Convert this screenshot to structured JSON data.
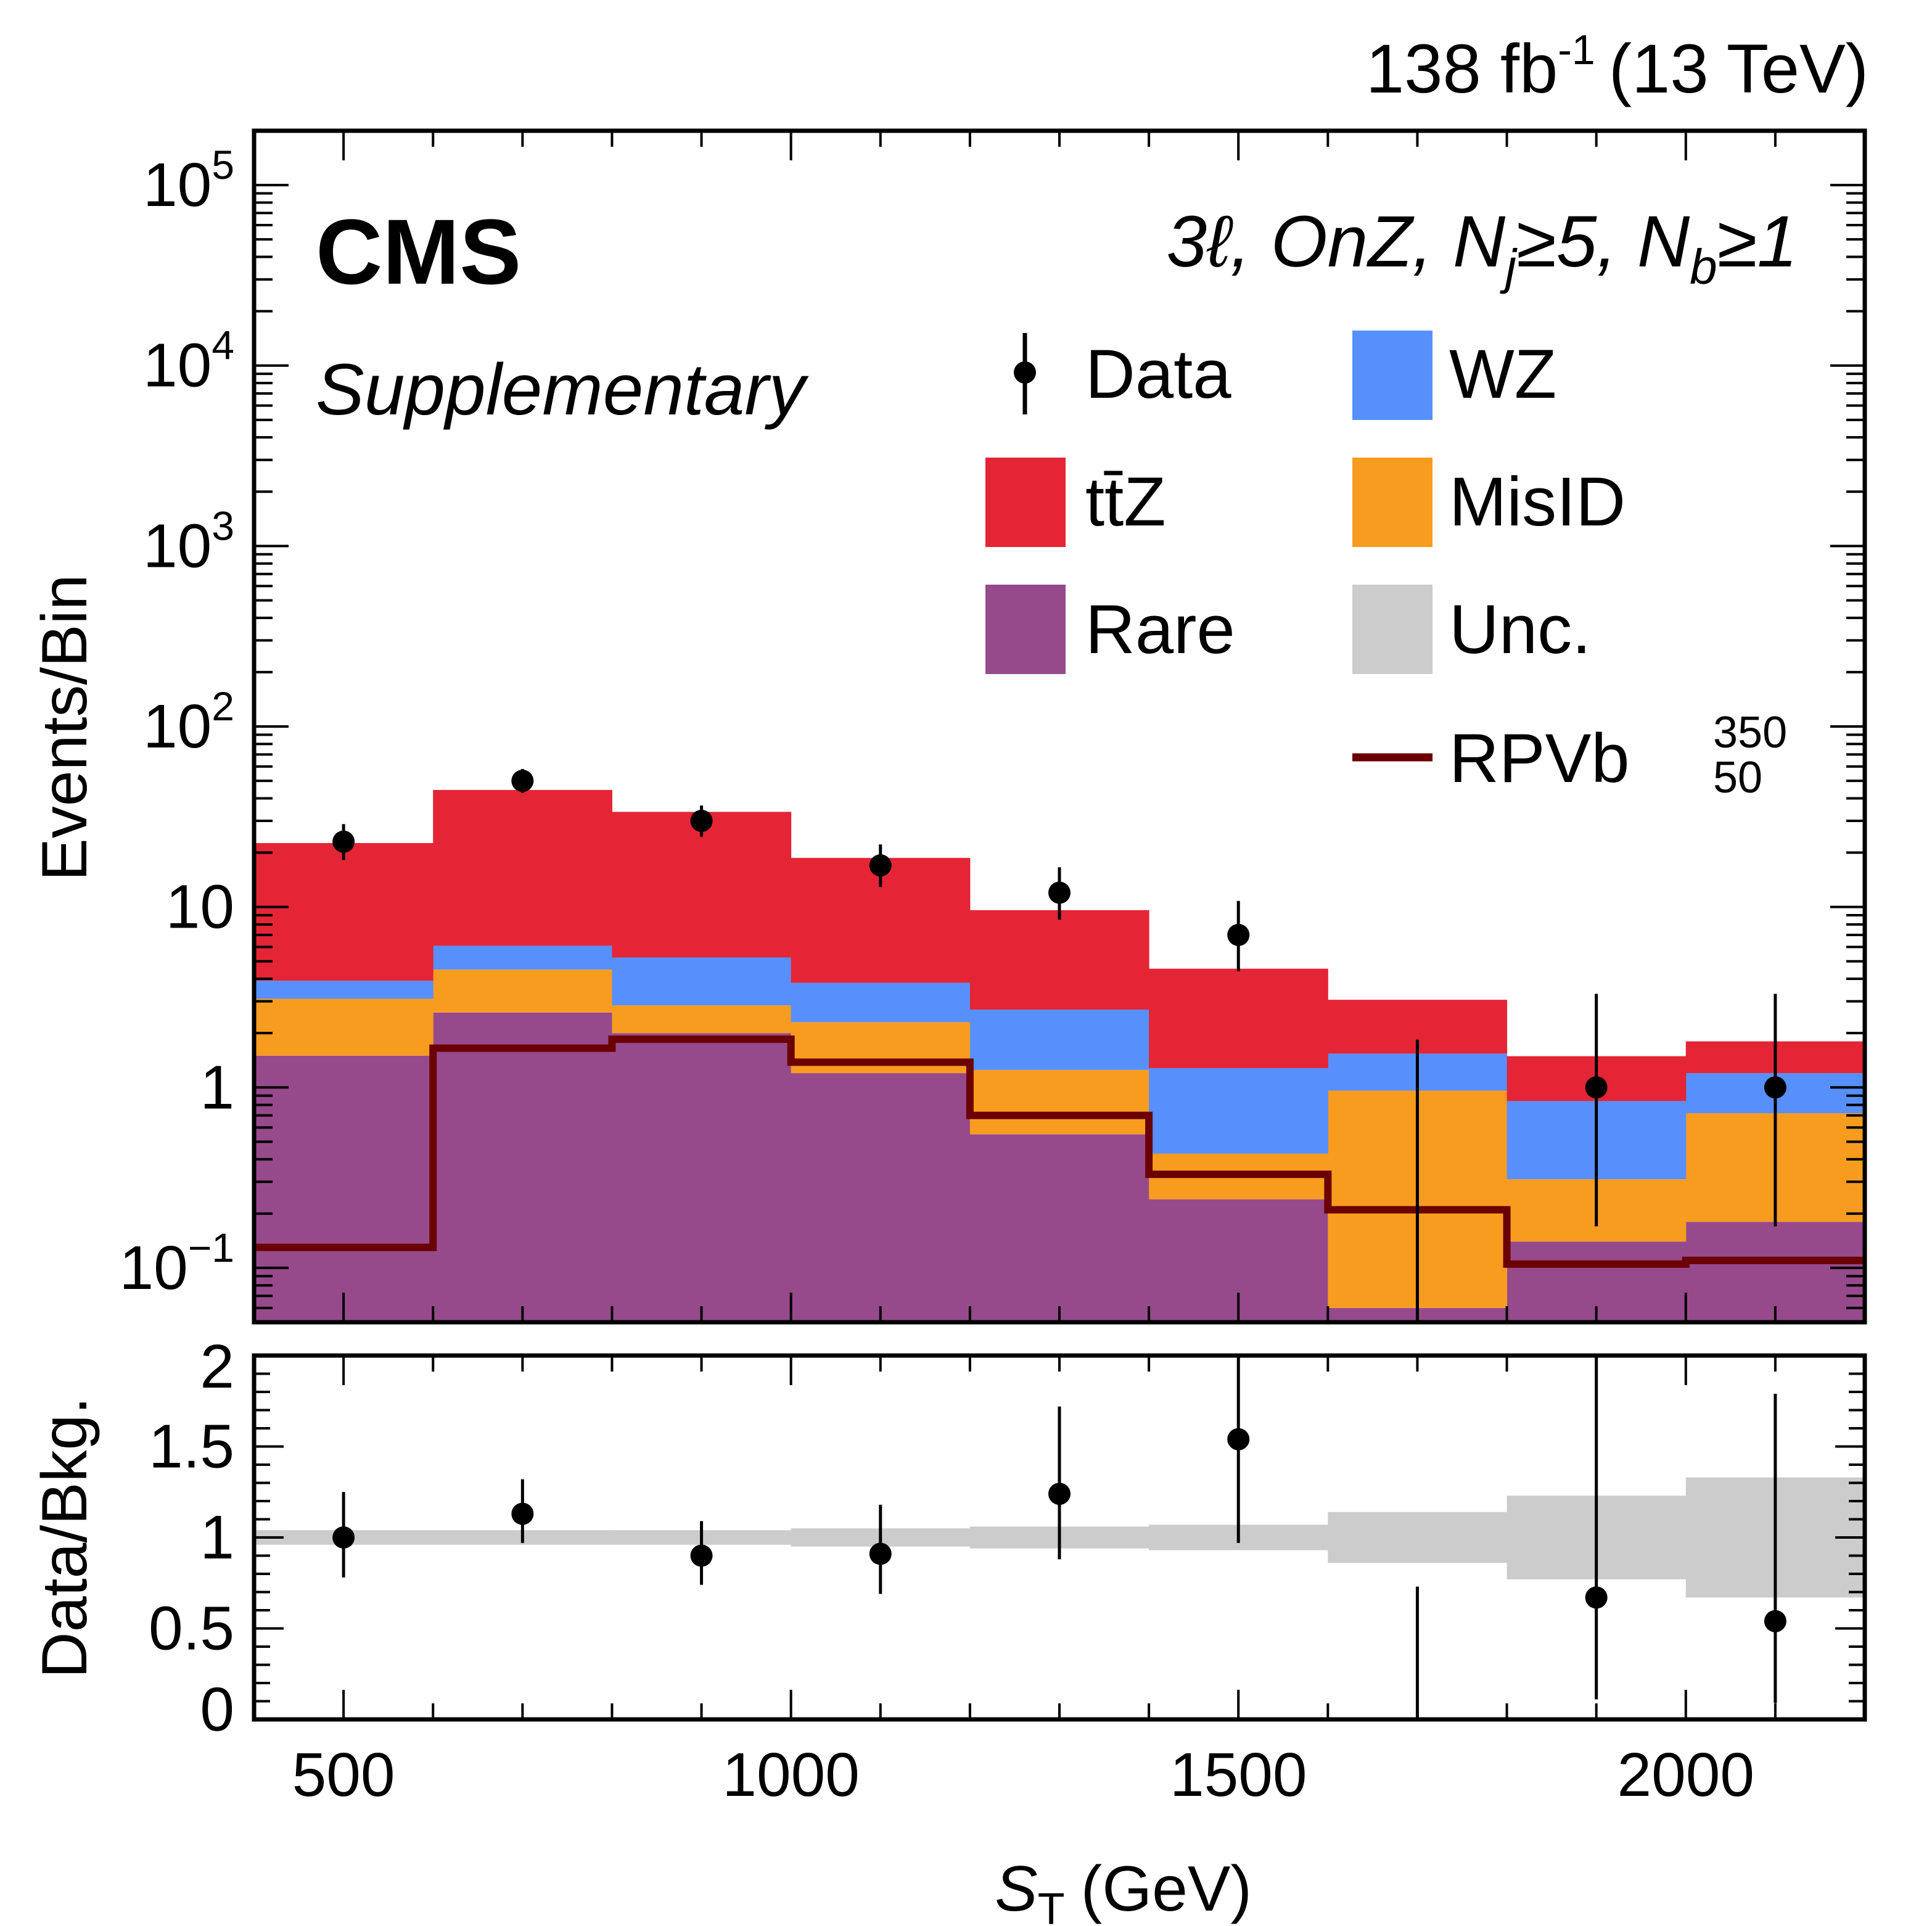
{
  "header": {
    "lumi": "138 fb",
    "lumi_sup": "-1",
    "energy": "(13 TeV)",
    "experiment": "CMS",
    "subtitle": "Supplementary"
  },
  "region": {
    "prefix": "3ℓ, OnZ, N",
    "j_sub": "j",
    "mid": "≥5, N",
    "b_sub": "b",
    "suffix": "≥1"
  },
  "legend": {
    "data": "Data",
    "wz": "WZ",
    "ttz": "tt̄Z",
    "misid": "MisID",
    "rare": "Rare",
    "unc": "Unc.",
    "signal_base": "RPVb",
    "signal_sup": "350",
    "signal_sub": "50"
  },
  "colors": {
    "ttz": "#e42536",
    "wz": "#5790fc",
    "misid": "#f89c20",
    "rare": "#964a8b",
    "unc": "#cccccc",
    "signal": "#6b0000",
    "data": "#000000"
  },
  "chart_data": {
    "type": "bar",
    "stacked": true,
    "x_edges": [
      400,
      600,
      800,
      1000,
      1200,
      1400,
      1600,
      1800,
      2000,
      2200
    ],
    "xlabel": "S",
    "xlabel_sub": "T",
    "xlabel_unit": "(GeV)",
    "xlim": [
      400,
      2200
    ],
    "x_ticks": [
      500,
      1000,
      1500,
      2000
    ],
    "top_panel": {
      "ylabel": "Events/Bin",
      "yscale": "log",
      "ylim": [
        0.05,
        200000
      ],
      "y_tick_labels": [
        {
          "value": 0.1,
          "base": "10",
          "exp": "−1"
        },
        {
          "value": 1,
          "base": "1",
          "exp": ""
        },
        {
          "value": 10,
          "base": "10",
          "exp": ""
        },
        {
          "value": 100,
          "base": "10",
          "exp": "2"
        },
        {
          "value": 1000,
          "base": "10",
          "exp": "3"
        },
        {
          "value": 10000,
          "base": "10",
          "exp": "4"
        },
        {
          "value": 100000,
          "base": "10",
          "exp": "5"
        }
      ],
      "stack_order": [
        "rare",
        "misid",
        "wz",
        "ttz"
      ],
      "series": [
        {
          "key": "rare",
          "name": "Rare",
          "values": [
            1.5,
            2.6,
            2.0,
            1.2,
            0.55,
            0.24,
            0.06,
            0.14,
            0.18
          ]
        },
        {
          "key": "misid",
          "name": "MisID",
          "values": [
            1.6,
            1.9,
            0.85,
            1.1,
            0.7,
            0.19,
            0.9,
            0.17,
            0.54
          ]
        },
        {
          "key": "wz",
          "name": "WZ",
          "values": [
            0.8,
            1.6,
            2.4,
            1.5,
            1.45,
            0.85,
            0.58,
            0.53,
            0.48
          ]
        },
        {
          "key": "ttz",
          "name": "tt̄Z",
          "values": [
            18.7,
            38.4,
            28.4,
            14.9,
            6.9,
            3.27,
            1.52,
            0.65,
            0.6
          ]
        }
      ],
      "signal": {
        "name": "RPVb",
        "values": [
          0.13,
          1.65,
          1.85,
          1.38,
          0.7,
          0.33,
          0.21,
          0.105,
          0.11
        ]
      },
      "data": {
        "name": "Data",
        "values": [
          23,
          50,
          30,
          17,
          12,
          7,
          0,
          1,
          1
        ],
        "err_low": [
          4.8,
          7.1,
          5.5,
          4.1,
          3.5,
          2.6,
          0,
          0.83,
          0.83
        ],
        "err_high": [
          5.8,
          8.1,
          6.5,
          5.2,
          4.6,
          3.8,
          1.84,
          2.3,
          2.3
        ]
      }
    },
    "ratio_panel": {
      "ylabel": "Data/Bkg.",
      "ylim": [
        0,
        2
      ],
      "y_ticks": [
        0,
        0.5,
        1,
        1.5,
        2
      ],
      "y_tick_labels": [
        "0",
        "0.5",
        "1",
        "1.5",
        "2"
      ],
      "values": [
        1.0,
        1.13,
        0.9,
        0.91,
        1.24,
        1.54,
        0,
        0.67,
        0.54
      ],
      "err_low": [
        0.22,
        0.16,
        0.16,
        0.22,
        0.36,
        0.57,
        0,
        0.56,
        0.45
      ],
      "err_high": [
        0.25,
        0.19,
        0.19,
        0.27,
        0.48,
        0.79,
        0.73,
        1.6,
        1.25
      ],
      "unc_low": [
        0.96,
        0.96,
        0.96,
        0.95,
        0.94,
        0.93,
        0.86,
        0.77,
        0.67
      ],
      "unc_high": [
        1.04,
        1.04,
        1.04,
        1.05,
        1.06,
        1.07,
        1.14,
        1.23,
        1.33
      ]
    }
  }
}
